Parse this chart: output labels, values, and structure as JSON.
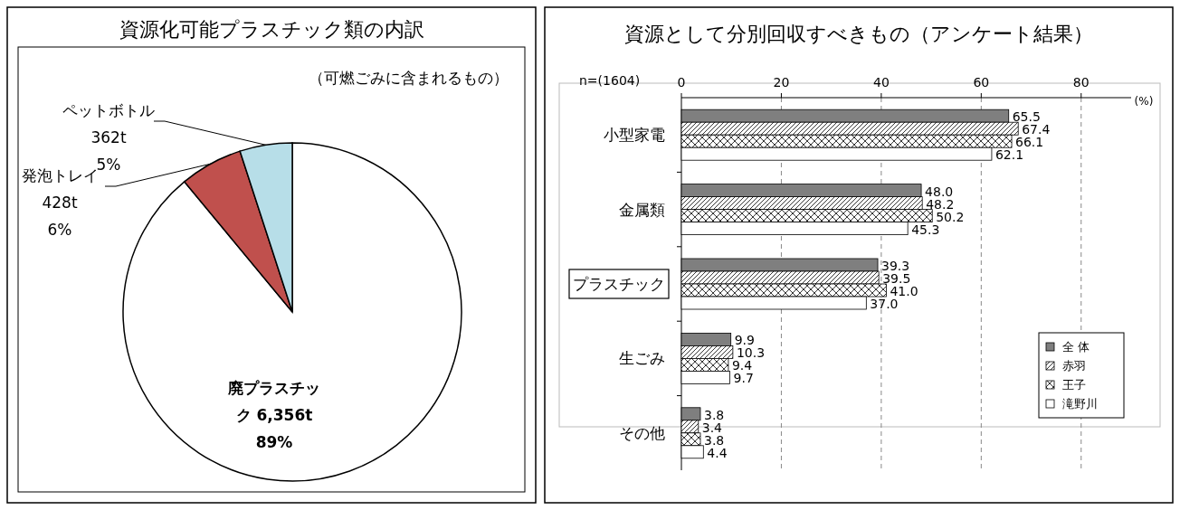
{
  "chart_data": [
    {
      "type": "pie",
      "title": "資源化可能プラスチック類の内訳",
      "categories": [
        "廃プラスチック 6,356t",
        "発泡トレイ 428t",
        "ペットボトル 362t"
      ],
      "values": [
        89,
        6,
        5
      ],
      "value_labels": [
        "89%",
        "6%",
        "5%"
      ],
      "colors": [
        "#ffffff",
        "#c0504d",
        "#b7dee8"
      ],
      "annotations": [
        "（可燃ごみに含まれるもの）"
      ]
    },
    {
      "type": "bar",
      "orientation": "horizontal",
      "title": "資源として分別回収すべきもの（アンケート結果）",
      "categories": [
        "小型家電",
        "金属類",
        "プラスチック",
        "生ごみ",
        "その他"
      ],
      "series": [
        {
          "name": "全 体",
          "color": "#7f7f7f",
          "values": [
            65.5,
            48.0,
            39.3,
            9.9,
            3.8
          ],
          "value_labels": [
            "65.5",
            "48.0",
            "39.3",
            "9.9",
            "3.8"
          ]
        },
        {
          "name": "赤羽",
          "color": "#000000",
          "values": [
            67.4,
            48.2,
            39.5,
            10.3,
            3.4
          ],
          "value_labels": [
            "67.4",
            "48.2",
            "39.5",
            "10.3",
            "3.4"
          ]
        },
        {
          "name": "王子",
          "color": "#000000",
          "values": [
            66.1,
            50.2,
            41.0,
            9.4,
            3.8
          ],
          "value_labels": [
            "66.1",
            "50.2",
            "41.0",
            "9.4",
            "3.8"
          ]
        },
        {
          "name": "滝野川",
          "color": "#ffffff",
          "values": [
            62.1,
            45.3,
            37.0,
            9.7,
            4.4
          ],
          "value_labels": [
            "62.1",
            "45.3",
            "37.0",
            "9.7",
            "4.4"
          ]
        }
      ],
      "xlim": [
        0,
        90
      ],
      "xticks": [
        0,
        20,
        40,
        60,
        80
      ],
      "xlabel": "(%)",
      "grid": "x",
      "legend": "bottom right",
      "annotations": [
        "n=(1604)"
      ]
    }
  ]
}
